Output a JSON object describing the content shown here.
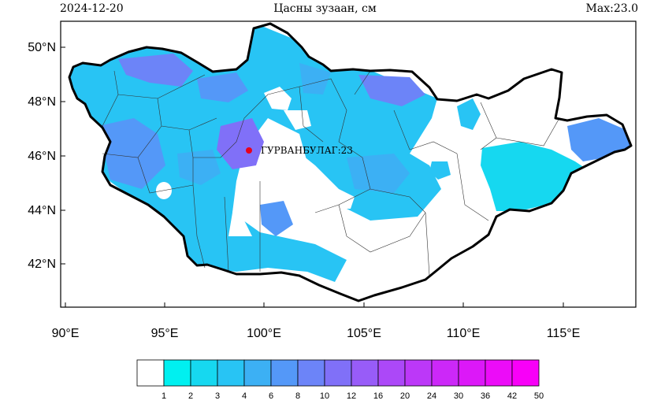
{
  "header": {
    "date": "2024-12-20",
    "title": "Цасны зузаан, см",
    "max_label": "Max:23.0"
  },
  "map": {
    "lat_ticks": [
      "42°N",
      "44°N",
      "46°N",
      "48°N",
      "50°N"
    ],
    "lon_ticks": [
      "90°E",
      "95°E",
      "100°E",
      "105°E",
      "110°E",
      "115°E"
    ],
    "station": {
      "label": "ГУРВАНБУЛАГ:23",
      "value": 23,
      "color": "#e8001c"
    },
    "snow_present_color": "#00e5ee",
    "boundary_color": "#000000"
  },
  "colorbar": {
    "colors": [
      "#ffffff",
      "#00f0f0",
      "#16d8f0",
      "#28c4f4",
      "#3cb0f4",
      "#5498f8",
      "#6c84f8",
      "#8070f8",
      "#985cf8",
      "#ac48f8",
      "#bc38f8",
      "#cc28f8",
      "#dc18f8",
      "#ec0cf8",
      "#f800f8"
    ],
    "labels": [
      "1",
      "2",
      "3",
      "4",
      "6",
      "8",
      "10",
      "12",
      "16",
      "20",
      "24",
      "30",
      "36",
      "42",
      "50"
    ]
  }
}
